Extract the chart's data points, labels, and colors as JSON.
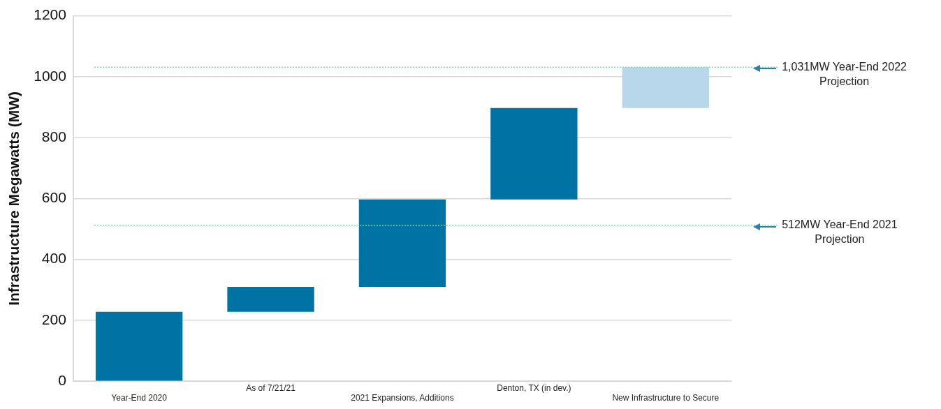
{
  "chart_data": {
    "type": "bar",
    "ylabel": "Infrastructure Megawatts (MW)",
    "categories": [
      "Year-End 2020",
      "As of 7/21/21",
      "2021 Expansions, Additions",
      "Denton, TX (in dev.)",
      "New Infrastructure to Secure"
    ],
    "values": [
      228,
      82,
      287,
      300,
      134
    ],
    "base": [
      0,
      228,
      310,
      597,
      897
    ],
    "colors": [
      "#0073a5",
      "#0073a5",
      "#0073a5",
      "#0073a5",
      "#b9d7ea"
    ],
    "ylim": [
      0,
      1200
    ],
    "yticks": [
      0,
      200,
      400,
      600,
      800,
      1000,
      1200
    ],
    "grid": "y",
    "ref_lines": [
      {
        "axis": "y",
        "value": 1031,
        "label": "1,031MW Year-End 2022 Projection",
        "color": "#7fd8a8",
        "line_style": "dotted"
      },
      {
        "axis": "y",
        "value": 512,
        "label": "512MW Year-End 2021 Projection",
        "color": "#7fd8a8",
        "line_style": "dotted"
      }
    ]
  }
}
